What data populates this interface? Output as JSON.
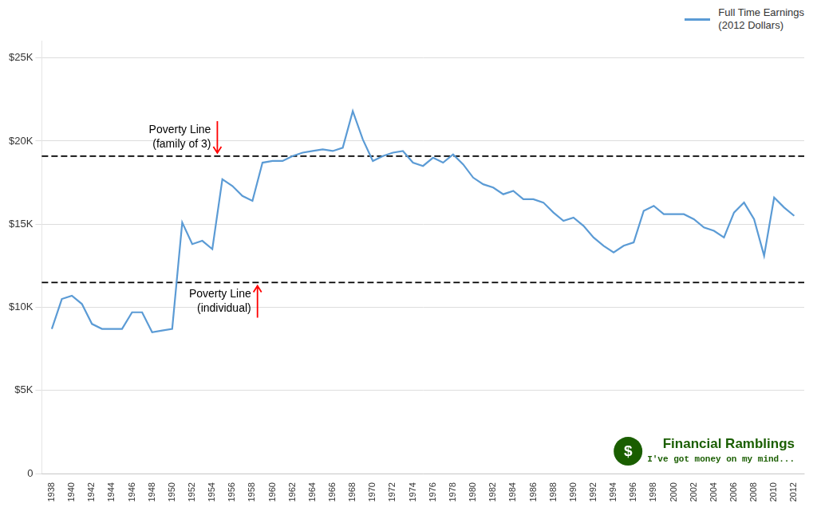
{
  "chart_data": {
    "type": "line",
    "x": [
      1938,
      1939,
      1940,
      1941,
      1942,
      1943,
      1944,
      1945,
      1946,
      1947,
      1948,
      1949,
      1950,
      1951,
      1952,
      1953,
      1954,
      1955,
      1956,
      1957,
      1958,
      1959,
      1960,
      1961,
      1962,
      1963,
      1964,
      1965,
      1966,
      1967,
      1968,
      1969,
      1970,
      1971,
      1972,
      1973,
      1974,
      1975,
      1976,
      1977,
      1978,
      1979,
      1980,
      1981,
      1982,
      1983,
      1984,
      1985,
      1986,
      1987,
      1988,
      1989,
      1990,
      1991,
      1992,
      1993,
      1994,
      1995,
      1996,
      1997,
      1998,
      1999,
      2000,
      2001,
      2002,
      2003,
      2004,
      2005,
      2006,
      2007,
      2008,
      2009,
      2010,
      2011,
      2012
    ],
    "series": [
      {
        "name": "Full Time Earnings\n(2012 Dollars)",
        "color": "#5B9BD5",
        "values": [
          8700,
          10500,
          10700,
          10200,
          9000,
          8700,
          8700,
          8700,
          9700,
          9700,
          8500,
          8600,
          8700,
          15100,
          13800,
          14000,
          13500,
          17700,
          17300,
          16700,
          16400,
          18700,
          18800,
          18800,
          19100,
          19300,
          19400,
          19500,
          19400,
          19600,
          21800,
          20100,
          18800,
          19100,
          19300,
          19400,
          18700,
          18500,
          19000,
          18700,
          19200,
          18600,
          17800,
          17400,
          17200,
          16800,
          17000,
          16500,
          16500,
          16300,
          15700,
          15200,
          15400,
          14900,
          14200,
          13700,
          13300,
          13700,
          13900,
          15800,
          16100,
          15600,
          15600,
          15600,
          15300,
          14800,
          14600,
          14200,
          15700,
          16300,
          15300,
          13100,
          16600,
          16000,
          15500
        ]
      }
    ],
    "xlim": [
      1937,
      2013
    ],
    "xticks": [
      1938,
      1940,
      1942,
      1944,
      1946,
      1948,
      1950,
      1952,
      1954,
      1956,
      1958,
      1960,
      1962,
      1964,
      1966,
      1968,
      1970,
      1972,
      1974,
      1976,
      1978,
      1980,
      1982,
      1984,
      1986,
      1988,
      1990,
      1992,
      1994,
      1996,
      1998,
      2000,
      2002,
      2004,
      2006,
      2008,
      2010,
      2012
    ],
    "ylim": [
      0,
      26000
    ],
    "yticks": [
      0,
      {
        "value": 5000,
        "label": "$5K"
      },
      {
        "value": 10000,
        "label": "$10K"
      },
      {
        "value": 15000,
        "label": "$15K"
      },
      {
        "value": 20000,
        "label": "$20K"
      },
      {
        "value": 25000,
        "label": "$25K"
      }
    ],
    "grid": "y",
    "legend": "upper right",
    "hlines": [
      {
        "y": 19090,
        "color": "black",
        "line_style": "dashed"
      },
      {
        "y": 11490,
        "color": "black",
        "line_style": "dashed"
      }
    ],
    "annotations": [
      {
        "text": [
          "Poverty Line",
          "(family of 3)"
        ],
        "x": 1954.5,
        "y": 19090,
        "side": "above",
        "arrow_color": "red"
      },
      {
        "text": [
          "Poverty Line",
          "(individual)"
        ],
        "x": 1958.5,
        "y": 11490,
        "side": "below",
        "arrow_color": "red"
      }
    ],
    "logo": {
      "icon": "$",
      "title": "Financial Ramblings",
      "subtitle": "I've got money on my mind...",
      "color": "#1a5e00"
    }
  }
}
